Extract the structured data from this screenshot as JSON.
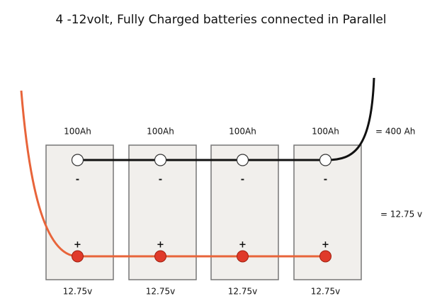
{
  "title": "4 -12volt, Fully Charged batteries connected in Parallel",
  "batteries": [
    {
      "capacity": "100Ah",
      "voltage": "12.75v",
      "negative": "-",
      "positive": "+"
    },
    {
      "capacity": "100Ah",
      "voltage": "12.75v",
      "negative": "-",
      "positive": "+"
    },
    {
      "capacity": "100Ah",
      "voltage": "12.75v",
      "negative": "-",
      "positive": "+"
    },
    {
      "capacity": "100Ah",
      "voltage": "12.75v",
      "negative": "-",
      "positive": "+"
    }
  ],
  "total_capacity": "= 400 Ah",
  "total_voltage": "= 12.75 v"
}
